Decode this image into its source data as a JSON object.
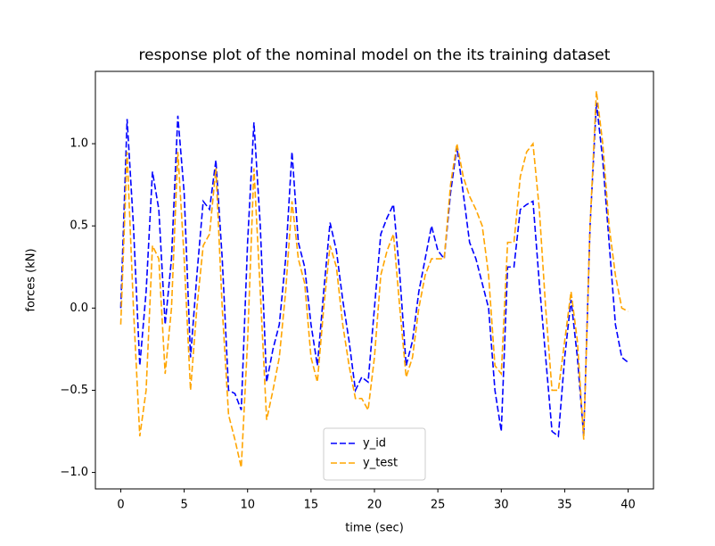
{
  "chart_data": {
    "type": "line",
    "title": "response plot of the nominal model on the its training dataset",
    "x_label": "time (sec)",
    "y_label": "forces (kN)",
    "x": [
      0,
      0.5,
      1,
      1.5,
      2,
      2.5,
      3,
      3.5,
      4,
      4.5,
      5,
      5.5,
      6,
      6.5,
      7,
      7.5,
      8,
      8.5,
      9,
      9.5,
      10,
      10.5,
      11,
      11.5,
      12,
      12.5,
      13,
      13.5,
      14,
      14.5,
      15,
      15.5,
      16,
      16.5,
      17,
      17.5,
      18,
      18.5,
      19,
      19.5,
      20,
      20.5,
      21,
      21.5,
      22,
      22.5,
      23,
      23.5,
      24,
      24.5,
      25,
      25.5,
      26,
      26.5,
      27,
      27.5,
      28,
      28.5,
      29,
      29.5,
      30,
      30.5,
      31,
      31.5,
      32,
      32.5,
      33,
      33.5,
      34,
      34.5,
      35,
      35.5,
      36,
      36.5,
      37,
      37.5,
      38,
      38.5,
      39,
      39.5,
      40
    ],
    "series": [
      {
        "name": "y_id",
        "color": "#0000ff",
        "values": [
          0,
          1.15,
          0.5,
          -0.35,
          0.1,
          0.83,
          0.6,
          -0.1,
          0.3,
          1.17,
          0.7,
          -0.3,
          0.2,
          0.65,
          0.6,
          0.9,
          0.3,
          -0.5,
          -0.52,
          -0.62,
          0.4,
          1.13,
          0.5,
          -0.45,
          -0.25,
          -0.1,
          0.3,
          0.95,
          0.4,
          0.25,
          -0.1,
          -0.35,
          0.1,
          0.52,
          0.35,
          0.05,
          -0.2,
          -0.5,
          -0.42,
          -0.45,
          0,
          0.45,
          0.55,
          0.63,
          0.2,
          -0.35,
          -0.2,
          0.1,
          0.3,
          0.5,
          0.35,
          0.3,
          0.7,
          0.98,
          0.7,
          0.4,
          0.3,
          0.15,
          0,
          -0.5,
          -0.75,
          0.25,
          0.25,
          0.6,
          0.63,
          0.65,
          0.15,
          -0.3,
          -0.75,
          -0.78,
          -0.3,
          0.05,
          -0.3,
          -0.78,
          0.5,
          1.25,
          0.9,
          0.4,
          -0.1,
          -0.3,
          -0.33
        ]
      },
      {
        "name": "y_test",
        "color": "#ffa500",
        "values": [
          -0.1,
          0.95,
          0,
          -0.78,
          -0.5,
          0.38,
          0.3,
          -0.4,
          0,
          0.95,
          0.3,
          -0.5,
          0,
          0.38,
          0.45,
          0.85,
          0,
          -0.65,
          -0.8,
          -0.97,
          -0.2,
          0.85,
          0.1,
          -0.68,
          -0.5,
          -0.3,
          0.1,
          0.65,
          0.3,
          0.15,
          -0.3,
          -0.45,
          0,
          0.38,
          0.25,
          -0.1,
          -0.35,
          -0.55,
          -0.55,
          -0.62,
          -0.3,
          0.2,
          0.35,
          0.45,
          0,
          -0.42,
          -0.3,
          0,
          0.2,
          0.3,
          0.3,
          0.3,
          0.75,
          1,
          0.8,
          0.68,
          0.6,
          0.5,
          0.2,
          -0.35,
          -0.4,
          0.4,
          0.4,
          0.8,
          0.95,
          1,
          0.6,
          0,
          -0.5,
          -0.5,
          -0.2,
          0.1,
          -0.2,
          -0.8,
          0.5,
          1.32,
          1,
          0.5,
          0.2,
          0,
          -0.02
        ]
      }
    ],
    "xlim": [
      -2,
      42
    ],
    "ylim": [
      -1.1,
      1.44
    ],
    "xticks": [
      0,
      5,
      10,
      15,
      20,
      25,
      30,
      35,
      40
    ],
    "yticks": [
      {
        "value": -1,
        "label": "−1.0"
      },
      {
        "value": -0.5,
        "label": "−0.5"
      },
      {
        "value": 0,
        "label": "0.0"
      },
      {
        "value": 0.5,
        "label": "0.5"
      },
      {
        "value": 1,
        "label": "1.0"
      }
    ],
    "line_style": "dashed",
    "legend": "lower center"
  }
}
